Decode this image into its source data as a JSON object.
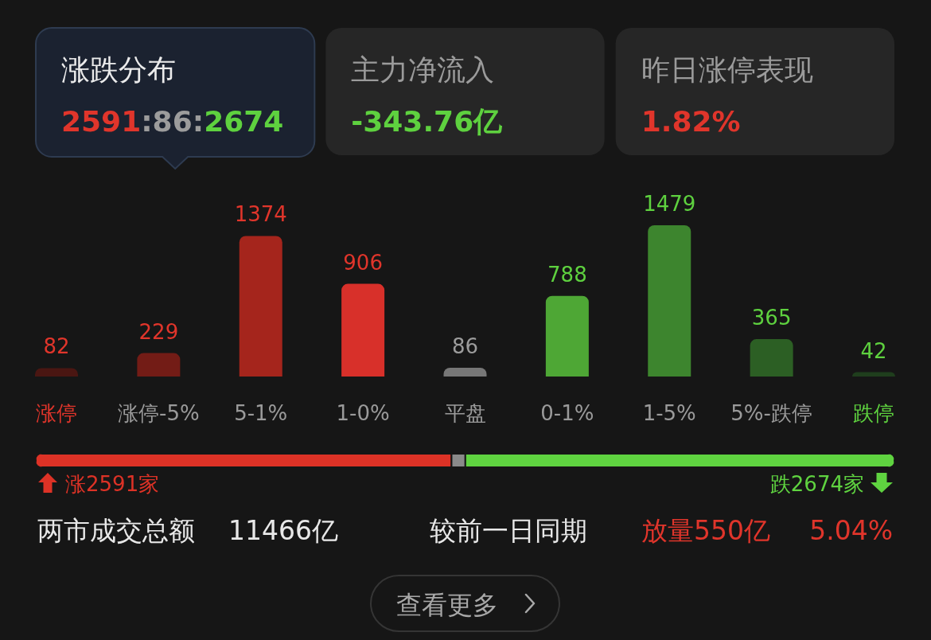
{
  "chart_data": [
    {
      "type": "other",
      "annotations": [
        "涨跌分布",
        "2591:86:2674",
        "主力净流入",
        "-343.76亿",
        "昨日涨停表现",
        "1.82%"
      ]
    },
    {
      "type": "bar",
      "categories": [
        "涨停",
        "涨停-5%",
        "5-1%",
        "1-0%",
        "平盘",
        "0-1%",
        "1-5%",
        "5%-跌停",
        "跌停"
      ],
      "series": [
        {
          "color": "#e0352b",
          "colors": [
            "#4a1612",
            "#731c16",
            "#a5251c",
            "#d8302a",
            null,
            null,
            null,
            null,
            null
          ],
          "values": [
            82,
            229,
            1374,
            906,
            null,
            null,
            null,
            null,
            null
          ]
        },
        {
          "color": "#9c9c9c",
          "colors": [
            null,
            null,
            null,
            null,
            "#777777",
            null,
            null,
            null,
            null
          ],
          "values": [
            null,
            null,
            null,
            null,
            86,
            null,
            null,
            null,
            null
          ]
        },
        {
          "color": "#5ed13f",
          "colors": [
            null,
            null,
            null,
            null,
            null,
            "#4ea735",
            "#3d852e",
            "#2c5f24",
            "#1f3e1d"
          ],
          "values": [
            null,
            null,
            null,
            null,
            null,
            788,
            1479,
            365,
            42
          ]
        }
      ],
      "data_labels": true
    },
    {
      "type": "bar",
      "orientation": "horizontal",
      "stacked": true,
      "categories": [
        null
      ],
      "series": [
        {
          "color": "#dd3226",
          "values": [
            2591
          ],
          "value_labels": [
            "涨2591家"
          ]
        },
        {
          "color": "#8a8a8a",
          "values": [
            86
          ],
          "value_labels": [
            null
          ]
        },
        {
          "color": "#5fd340",
          "values": [
            2674
          ],
          "value_labels": [
            "跌2674家"
          ]
        }
      ]
    },
    {
      "type": "other",
      "annotations": [
        "两市成交总额",
        "11466亿",
        "较前一日同期",
        "放量550亿",
        "5.04%",
        "查看更多"
      ]
    }
  ]
}
